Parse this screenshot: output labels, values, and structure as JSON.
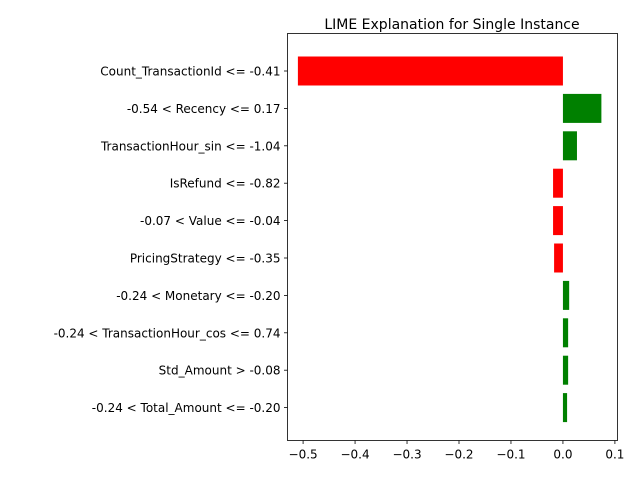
{
  "chart_data": {
    "type": "bar",
    "orientation": "horizontal",
    "title": "LIME Explanation for Single Instance",
    "xlabel": "",
    "ylabel": "",
    "xlim": [
      -0.53,
      0.105
    ],
    "xticks": [
      -0.5,
      -0.4,
      -0.3,
      -0.2,
      -0.1,
      0.0,
      0.1
    ],
    "xtick_labels": [
      "−0.5",
      "−0.4",
      "−0.3",
      "−0.2",
      "−0.1",
      "0.0",
      "0.1"
    ],
    "grid": false,
    "categories": [
      "Count_TransactionId <= -0.41",
      "-0.54 < Recency <= 0.17",
      "TransactionHour_sin <= -1.04",
      "IsRefund <= -0.82",
      "-0.07 < Value <= -0.04",
      "PricingStrategy <= -0.35",
      "-0.24 < Monetary <= -0.20",
      "-0.24 < TransactionHour_cos <= 0.74",
      "Std_Amount > -0.08",
      "-0.24 < Total_Amount <= -0.20"
    ],
    "values": [
      -0.51,
      0.074,
      0.027,
      -0.019,
      -0.019,
      -0.017,
      0.012,
      0.01,
      0.01,
      0.008
    ],
    "colors": {
      "positive": "#008000",
      "negative": "#ff0000"
    }
  }
}
